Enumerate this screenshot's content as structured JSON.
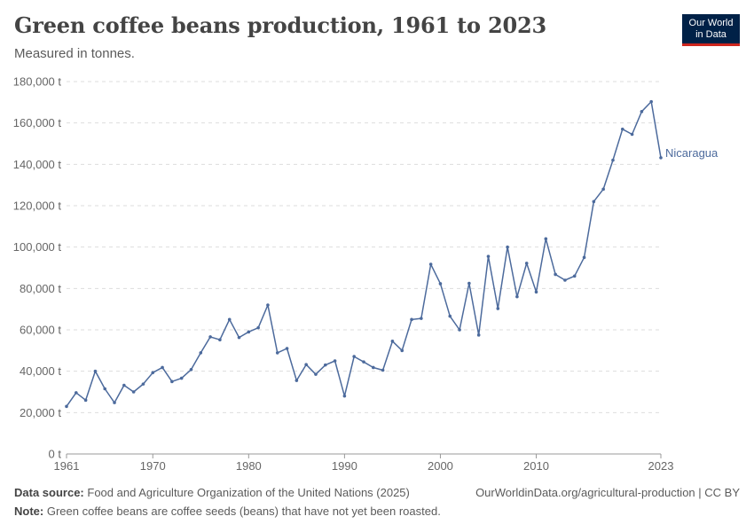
{
  "header": {
    "title": "Green coffee beans production, 1961 to 2023",
    "subtitle": "Measured in tonnes."
  },
  "logo": {
    "line1": "Our World",
    "line2": "in Data",
    "background": "#002147",
    "accent": "#ce261e"
  },
  "footer": {
    "source_label": "Data source:",
    "source_text": "Food and Agriculture Organization of the United Nations (2025)",
    "note_label": "Note:",
    "note_text": "Green coffee beans are coffee seeds (beans) that have not yet been roasted.",
    "url_text": "OurWorldinData.org/agricultural-production | CC BY"
  },
  "chart_data": {
    "type": "line",
    "title": "Green coffee beans production, 1961 to 2023",
    "subtitle": "Measured in tonnes.",
    "xlabel": "",
    "ylabel": "",
    "xlim": [
      1961,
      2023
    ],
    "ylim": [
      0,
      180000
    ],
    "x_ticks": [
      1961,
      1970,
      1980,
      1990,
      2000,
      2010,
      2023
    ],
    "x_tick_labels": [
      "1961",
      "1970",
      "1980",
      "1990",
      "2000",
      "2010",
      "2023"
    ],
    "y_ticks": [
      0,
      20000,
      40000,
      60000,
      80000,
      100000,
      120000,
      140000,
      160000,
      180000
    ],
    "y_tick_labels": [
      "0 t",
      "20,000 t",
      "40,000 t",
      "60,000 t",
      "80,000 t",
      "100,000 t",
      "120,000 t",
      "140,000 t",
      "160,000 t",
      "180,000 t"
    ],
    "grid": true,
    "legend": "inline label at line end",
    "series_color": "#4c6a9c",
    "series": [
      {
        "name": "Nicaragua",
        "x": [
          1961,
          1962,
          1963,
          1964,
          1965,
          1966,
          1967,
          1968,
          1969,
          1970,
          1971,
          1972,
          1973,
          1974,
          1975,
          1976,
          1977,
          1978,
          1979,
          1980,
          1981,
          1982,
          1983,
          1984,
          1985,
          1986,
          1987,
          1988,
          1989,
          1990,
          1991,
          1992,
          1993,
          1994,
          1995,
          1996,
          1997,
          1998,
          1999,
          2000,
          2001,
          2002,
          2003,
          2004,
          2005,
          2006,
          2007,
          2008,
          2009,
          2010,
          2011,
          2012,
          2013,
          2014,
          2015,
          2016,
          2017,
          2018,
          2019,
          2020,
          2021,
          2022,
          2023
        ],
        "values": [
          23000,
          29600,
          26000,
          40000,
          31500,
          24800,
          33200,
          30000,
          33800,
          39300,
          41800,
          35000,
          36600,
          40800,
          48900,
          56600,
          55200,
          65000,
          56300,
          59000,
          61000,
          72000,
          48900,
          51000,
          35500,
          43200,
          38500,
          43000,
          45000,
          28000,
          47100,
          44500,
          41800,
          40500,
          54500,
          50000,
          65000,
          65500,
          91700,
          82300,
          66600,
          60000,
          82500,
          57500,
          95500,
          70300,
          100000,
          76000,
          92200,
          78300,
          104000,
          86800,
          84000,
          86000,
          95000,
          122000,
          128000,
          142000,
          157000,
          154500,
          165500,
          170300,
          143200
        ]
      }
    ]
  }
}
